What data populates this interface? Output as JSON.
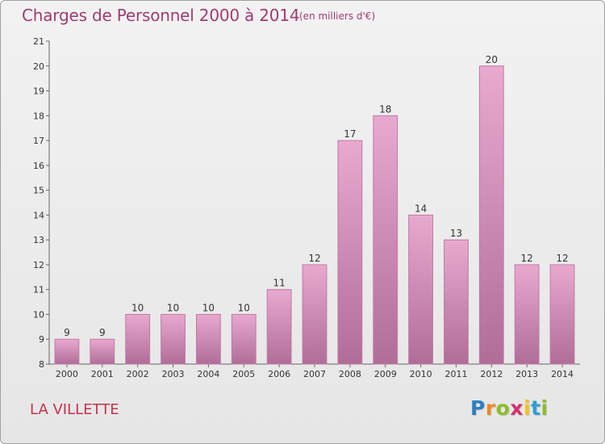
{
  "header": {
    "title": "Charges de Personnel 2000 à 2014",
    "unit_note": "(en milliers d'€)"
  },
  "footer": {
    "commune_name": "LA VILLETTE",
    "logo": {
      "letters": [
        "P",
        "r",
        "o",
        "x",
        "i",
        "t",
        "i"
      ],
      "colors": [
        "#2e7fc2",
        "#f08a1e",
        "#8bbd2a",
        "#d42e6f",
        "#f5c21b",
        "#2e9fd6",
        "#8bbd2a"
      ]
    }
  },
  "chart_data": {
    "type": "bar",
    "title": "Charges de Personnel 2000 à 2014",
    "subtitle": "(en milliers d'€)",
    "categories": [
      "2000",
      "2001",
      "2002",
      "2003",
      "2004",
      "2005",
      "2006",
      "2007",
      "2008",
      "2009",
      "2010",
      "2011",
      "2012",
      "2013",
      "2014"
    ],
    "values": [
      9,
      9,
      10,
      10,
      10,
      10,
      11,
      12,
      17,
      18,
      14,
      13,
      20,
      12,
      12
    ],
    "data_labels": [
      "9",
      "9",
      "10",
      "10",
      "10",
      "10",
      "11",
      "12",
      "17",
      "18",
      "14",
      "13",
      "20",
      "12",
      "12"
    ],
    "ylim": [
      8,
      21
    ],
    "yticks": [
      8,
      9,
      10,
      11,
      12,
      13,
      14,
      15,
      16,
      17,
      18,
      19,
      20,
      21
    ],
    "xlabel": "",
    "ylabel": "",
    "grid": false,
    "legend": "none",
    "bar_color_top": "#e8a9cf",
    "bar_color_bottom": "#b06d98",
    "bar_edge_color": "#c07aa6"
  }
}
